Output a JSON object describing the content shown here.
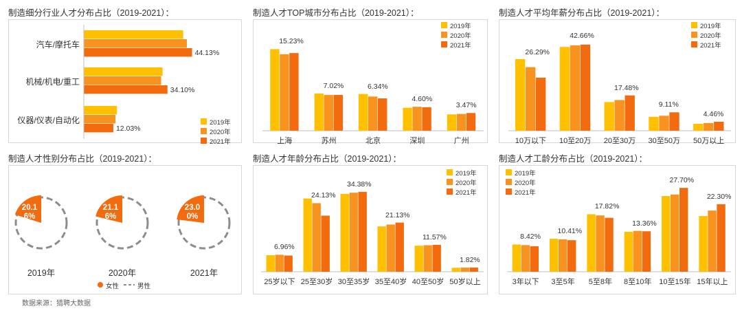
{
  "colors": {
    "y2019": "#FFC000",
    "y2020": "#F7931E",
    "y2021": "#F26B0F",
    "male_dash": "#8C8C8C",
    "axis": "#BFBFBF"
  },
  "legend": [
    "2019年",
    "2020年",
    "2021年"
  ],
  "source": "数据来源：猎聘大数据",
  "charts": {
    "industry": {
      "title": "制造细分行业人才分布占比（2019-2021）：",
      "chart_data": {
        "type": "bar",
        "orientation": "horizontal",
        "categories": [
          "汽车/摩托车",
          "机械/机电/重工",
          "仪器/仪表/自动化"
        ],
        "series": [
          {
            "name": "2019年",
            "values": [
              40.5,
              32.1,
              13.5
            ]
          },
          {
            "name": "2020年",
            "values": [
              42.0,
              31.5,
              12.9
            ]
          },
          {
            "name": "2021年",
            "values": [
              44.13,
              34.1,
              12.03
            ]
          }
        ],
        "labels": [
          "44.13%",
          "34.10%",
          "12.03%"
        ],
        "xlim": [
          0,
          50
        ]
      }
    },
    "city": {
      "title": "制造人才TOP城市分布占比（2019-2021）：",
      "chart_data": {
        "type": "bar",
        "categories": [
          "上海",
          "苏州",
          "北京",
          "深圳",
          "广州"
        ],
        "series": [
          {
            "name": "2019年",
            "values": [
              16.0,
              7.3,
              7.2,
              4.5,
              3.2
            ]
          },
          {
            "name": "2020年",
            "values": [
              15.0,
              7.0,
              6.7,
              4.7,
              3.3
            ]
          },
          {
            "name": "2021年",
            "values": [
              15.23,
              7.02,
              6.34,
              4.6,
              3.47
            ]
          }
        ],
        "labels": [
          "15.23%",
          "7.02%",
          "6.34%",
          "4.60%",
          "3.47%"
        ],
        "ylim": [
          0,
          17
        ]
      }
    },
    "salary": {
      "title": "制造人才平均年薪分布占比（2019-2021）：",
      "chart_data": {
        "type": "bar",
        "categories": [
          "10万以下",
          "10至20万",
          "20至30万",
          "30至50万",
          "50万以上"
        ],
        "series": [
          {
            "name": "2019年",
            "values": [
              35.5,
              41.5,
              14.2,
              6.9,
              3.4
            ]
          },
          {
            "name": "2020年",
            "values": [
              31.5,
              42.3,
              15.2,
              7.4,
              3.8
            ]
          },
          {
            "name": "2021年",
            "values": [
              26.29,
              42.66,
              17.48,
              9.11,
              4.46
            ]
          }
        ],
        "labels": [
          "26.29%",
          "42.66%",
          "17.48%",
          "9.11%",
          "4.46%"
        ],
        "ylim": [
          0,
          45
        ]
      }
    },
    "gender": {
      "title": "制造人才性别分布占比（2019-2021）：",
      "chart_data": {
        "type": "pie",
        "categories": [
          "2019年",
          "2020年",
          "2021年"
        ],
        "female": [
          20.16,
          21.16,
          23.0
        ],
        "labels": [
          "20.16%",
          "21.16%",
          "23.00%"
        ],
        "legend": [
          "女性",
          "男性"
        ]
      }
    },
    "age": {
      "title": "制造人才年龄分布占比（2019-2021）：",
      "chart_data": {
        "type": "bar",
        "categories": [
          "25岁以下",
          "25至30岁",
          "30至35岁",
          "35至40岁",
          "40至50岁",
          "50岁以上"
        ],
        "series": [
          {
            "name": "2019年",
            "values": [
              7.1,
              31.5,
              33.5,
              19.5,
              11.2,
              1.7
            ]
          },
          {
            "name": "2020年",
            "values": [
              7.3,
              29.5,
              34.0,
              20.3,
              11.4,
              1.8
            ]
          },
          {
            "name": "2021年",
            "values": [
              6.96,
              24.13,
              34.38,
              21.13,
              11.57,
              1.82
            ]
          }
        ],
        "labels": [
          "6.96%",
          "24.13%",
          "34.38%",
          "21.13%",
          "11.57%",
          "1.82%"
        ],
        "ylim": [
          0,
          37
        ]
      }
    },
    "experience": {
      "title": "制造人才工龄分布占比（2019-2021）：",
      "chart_data": {
        "type": "bar",
        "categories": [
          "3年以下",
          "3至5年",
          "5至8年",
          "8至10年",
          "10至15年",
          "15年以上"
        ],
        "series": [
          {
            "name": "2019年",
            "values": [
              9.0,
              10.9,
              19.0,
              13.2,
              25.0,
              18.4
            ]
          },
          {
            "name": "2020年",
            "values": [
              8.8,
              10.7,
              18.6,
              13.5,
              25.5,
              20.2
            ]
          },
          {
            "name": "2021年",
            "values": [
              8.42,
              10.41,
              17.82,
              13.36,
              27.7,
              22.3
            ]
          }
        ],
        "labels": [
          "8.42%",
          "10.41%",
          "17.82%",
          "13.36%",
          "27.70%",
          "22.30%"
        ],
        "ylim": [
          0,
          30
        ]
      }
    }
  }
}
